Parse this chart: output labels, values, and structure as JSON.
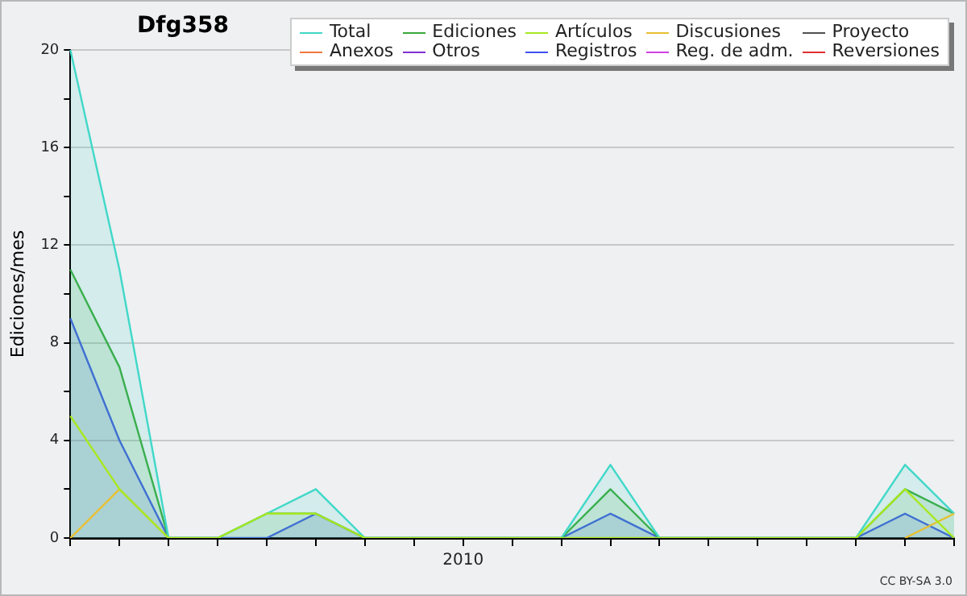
{
  "chart_data": {
    "type": "line",
    "title": "Dfg358",
    "ylabel": "Ediciones/mes",
    "categories": [
      null,
      null,
      null,
      null,
      null,
      null,
      null,
      null,
      "2010",
      null,
      null,
      null,
      null,
      null,
      null,
      null,
      null,
      null,
      null
    ],
    "ylim": [
      0,
      20
    ],
    "yticks": [
      {
        "value": 0,
        "label": "0"
      },
      {
        "value": 2,
        "label": null
      },
      {
        "value": 4,
        "label": "4"
      },
      {
        "value": 6,
        "label": null
      },
      {
        "value": 8,
        "label": "8"
      },
      {
        "value": 10,
        "label": null
      },
      {
        "value": 12,
        "label": "12"
      },
      {
        "value": 14,
        "label": null
      },
      {
        "value": 16,
        "label": "16"
      },
      {
        "value": 18,
        "label": null
      },
      {
        "value": 20,
        "label": "20"
      }
    ],
    "grid": "y",
    "legend": "top right",
    "marker": "none",
    "line_style": "solid",
    "annotations": [
      "CC BY-SA 3.0"
    ],
    "series": [
      {
        "name": "Total",
        "type": "area",
        "color": "#40d8c8",
        "values": [
          20,
          11,
          0,
          0,
          1,
          2,
          0,
          0,
          0,
          0,
          0,
          3,
          0,
          0,
          0,
          0,
          0,
          3,
          1
        ]
      },
      {
        "name": "Ediciones",
        "type": "area",
        "color": "#38a838",
        "values": [
          11,
          7,
          0,
          0,
          1,
          1,
          0,
          0,
          0,
          0,
          0,
          2,
          0,
          0,
          0,
          0,
          0,
          2,
          1
        ]
      },
      {
        "name": "Artículos",
        "type": "line",
        "color": "#a8e820",
        "values": [
          5,
          2,
          0,
          0,
          1,
          1,
          0,
          0,
          0,
          0,
          0,
          0,
          0,
          0,
          0,
          0,
          0,
          2,
          0
        ]
      },
      {
        "name": "Discusiones",
        "type": "line",
        "color": "#e8c030",
        "values": [
          0,
          2,
          0,
          null,
          null,
          null,
          null,
          null,
          null,
          null,
          null,
          null,
          null,
          null,
          null,
          null,
          null,
          0,
          1
        ]
      },
      {
        "name": "Proyecto",
        "type": "line",
        "color": "#505050",
        "values": [
          null,
          null,
          null,
          null,
          null,
          null,
          null,
          null,
          null,
          null,
          null,
          null,
          null,
          null,
          null,
          null,
          null,
          null,
          null
        ]
      },
      {
        "name": "Anexos",
        "type": "line",
        "color": "#f07840",
        "values": [
          null,
          null,
          null,
          null,
          null,
          null,
          null,
          null,
          null,
          null,
          null,
          null,
          null,
          null,
          null,
          null,
          null,
          null,
          null
        ]
      },
      {
        "name": "Otros",
        "type": "line",
        "color": "#8030d0",
        "values": [
          null,
          null,
          null,
          null,
          null,
          null,
          null,
          null,
          null,
          null,
          null,
          null,
          null,
          null,
          null,
          null,
          null,
          null,
          null
        ]
      },
      {
        "name": "Registros",
        "type": "area",
        "color": "#4050f0",
        "values": [
          9,
          4,
          0,
          0,
          0,
          1,
          0,
          0,
          0,
          0,
          0,
          1,
          0,
          0,
          0,
          0,
          0,
          1,
          0
        ]
      },
      {
        "name": "Reg. de adm.",
        "type": "line",
        "color": "#d040e0",
        "values": [
          null,
          null,
          null,
          null,
          null,
          null,
          null,
          null,
          null,
          null,
          null,
          null,
          null,
          null,
          null,
          null,
          null,
          null,
          null
        ]
      },
      {
        "name": "Reversiones",
        "type": "line",
        "color": "#e03030",
        "values": [
          null,
          null,
          null,
          null,
          null,
          null,
          null,
          null,
          null,
          null,
          null,
          null,
          null,
          null,
          null,
          null,
          null,
          null,
          null
        ]
      }
    ]
  }
}
